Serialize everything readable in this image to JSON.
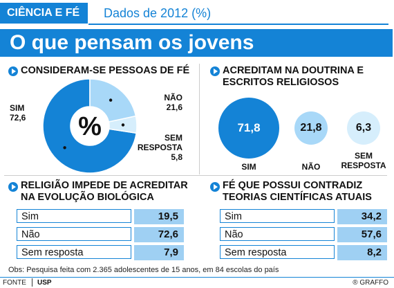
{
  "header": {
    "brand": "CIÊNCIA E FÉ",
    "subtitle": "Dados de 2012 (%)",
    "title": "O que pensam os jovens"
  },
  "colors": {
    "accent": "#1483d6",
    "light": "#a8d8f8",
    "pale": "#d6eefc",
    "value_cell": "#9fd0f3"
  },
  "chart_data": [
    {
      "type": "pie",
      "title": "CONSIDERAM-SE PESSOAS DE FÉ",
      "center_label": "%",
      "slices": [
        {
          "label": "SIM",
          "value": 72.6,
          "value_text": "72,6",
          "color": "#1483d6"
        },
        {
          "label": "NÃO",
          "value": 21.6,
          "value_text": "21,6",
          "color": "#a8d8f8"
        },
        {
          "label": "SEM RESPOSTA",
          "label_lines": [
            "SEM",
            "RESPOSTA"
          ],
          "value": 5.8,
          "value_text": "5,8",
          "color": "#d6eefc"
        }
      ]
    },
    {
      "type": "bubble",
      "title_lines": [
        "ACREDITAM NA DOUTRINA E",
        "ESCRITOS RELIGIOSOS"
      ],
      "bubbles": [
        {
          "label": "SIM",
          "label_lines": [
            "SIM"
          ],
          "value": 71.8,
          "value_text": "71,8",
          "color": "#1483d6",
          "text_color": "#ffffff"
        },
        {
          "label": "NÃO",
          "label_lines": [
            "NÃO"
          ],
          "value": 21.8,
          "value_text": "21,8",
          "color": "#a8d8f8",
          "text_color": "#111111"
        },
        {
          "label": "SEM RESPOSTA",
          "label_lines": [
            "SEM",
            "RESPOSTA"
          ],
          "value": 6.3,
          "value_text": "6,3",
          "color": "#d6eefc",
          "text_color": "#111111"
        }
      ]
    },
    {
      "type": "table",
      "title_lines": [
        "RELIGIÃO IMPEDE DE ACREDITAR",
        "NA EVOLUÇÃO BIOLÓGICA"
      ],
      "rows": [
        {
          "label": "Sim",
          "value": 19.5,
          "value_text": "19,5"
        },
        {
          "label": "Não",
          "value": 72.6,
          "value_text": "72,6"
        },
        {
          "label": "Sem resposta",
          "value": 7.9,
          "value_text": "7,9"
        }
      ]
    },
    {
      "type": "table",
      "title_lines": [
        "FÉ QUE POSSUI CONTRADIZ",
        "TEORIAS CIENTÍFICAS ATUAIS"
      ],
      "rows": [
        {
          "label": "Sim",
          "value": 34.2,
          "value_text": "34,2"
        },
        {
          "label": "Não",
          "value": 57.6,
          "value_text": "57,6"
        },
        {
          "label": "Sem resposta",
          "value": 8.2,
          "value_text": "8,2"
        }
      ]
    }
  ],
  "note": "Obs: Pesquisa feita com 2.365 adolescentes de 15 anos, em 84 escolas do país",
  "footer": {
    "source_label": "FONTE",
    "source_value": "USP",
    "credit": "® GRAFFO"
  }
}
